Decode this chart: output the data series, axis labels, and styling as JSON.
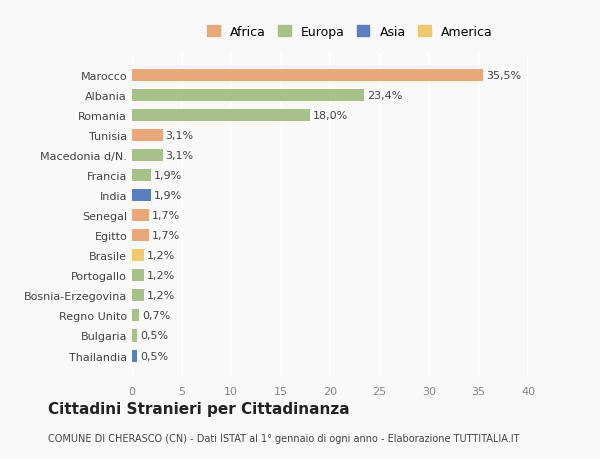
{
  "countries": [
    "Marocco",
    "Albania",
    "Romania",
    "Tunisia",
    "Macedonia d/N.",
    "Francia",
    "India",
    "Senegal",
    "Egitto",
    "Brasile",
    "Portogallo",
    "Bosnia-Erzegovina",
    "Regno Unito",
    "Bulgaria",
    "Thailandia"
  ],
  "values": [
    35.5,
    23.4,
    18.0,
    3.1,
    3.1,
    1.9,
    1.9,
    1.7,
    1.7,
    1.2,
    1.2,
    1.2,
    0.7,
    0.5,
    0.5
  ],
  "continents": [
    "Africa",
    "Europa",
    "Europa",
    "Africa",
    "Europa",
    "Europa",
    "Asia",
    "Africa",
    "Africa",
    "America",
    "Europa",
    "Europa",
    "Europa",
    "Europa",
    "Asia"
  ],
  "colors": {
    "Africa": "#E8A87C",
    "Europa": "#A8C08A",
    "Asia": "#5B7FBE",
    "America": "#F0C96E"
  },
  "legend_order": [
    "Africa",
    "Europa",
    "Asia",
    "America"
  ],
  "title": "Cittadini Stranieri per Cittadinanza",
  "subtitle": "COMUNE DI CHERASCO (CN) - Dati ISTAT al 1° gennaio di ogni anno - Elaborazione TUTTITALIA.IT",
  "xlim": [
    0,
    40
  ],
  "xticks": [
    0,
    5,
    10,
    15,
    20,
    25,
    30,
    35,
    40
  ],
  "background_color": "#f9f9f9",
  "grid_color": "#ffffff",
  "bar_height": 0.6
}
